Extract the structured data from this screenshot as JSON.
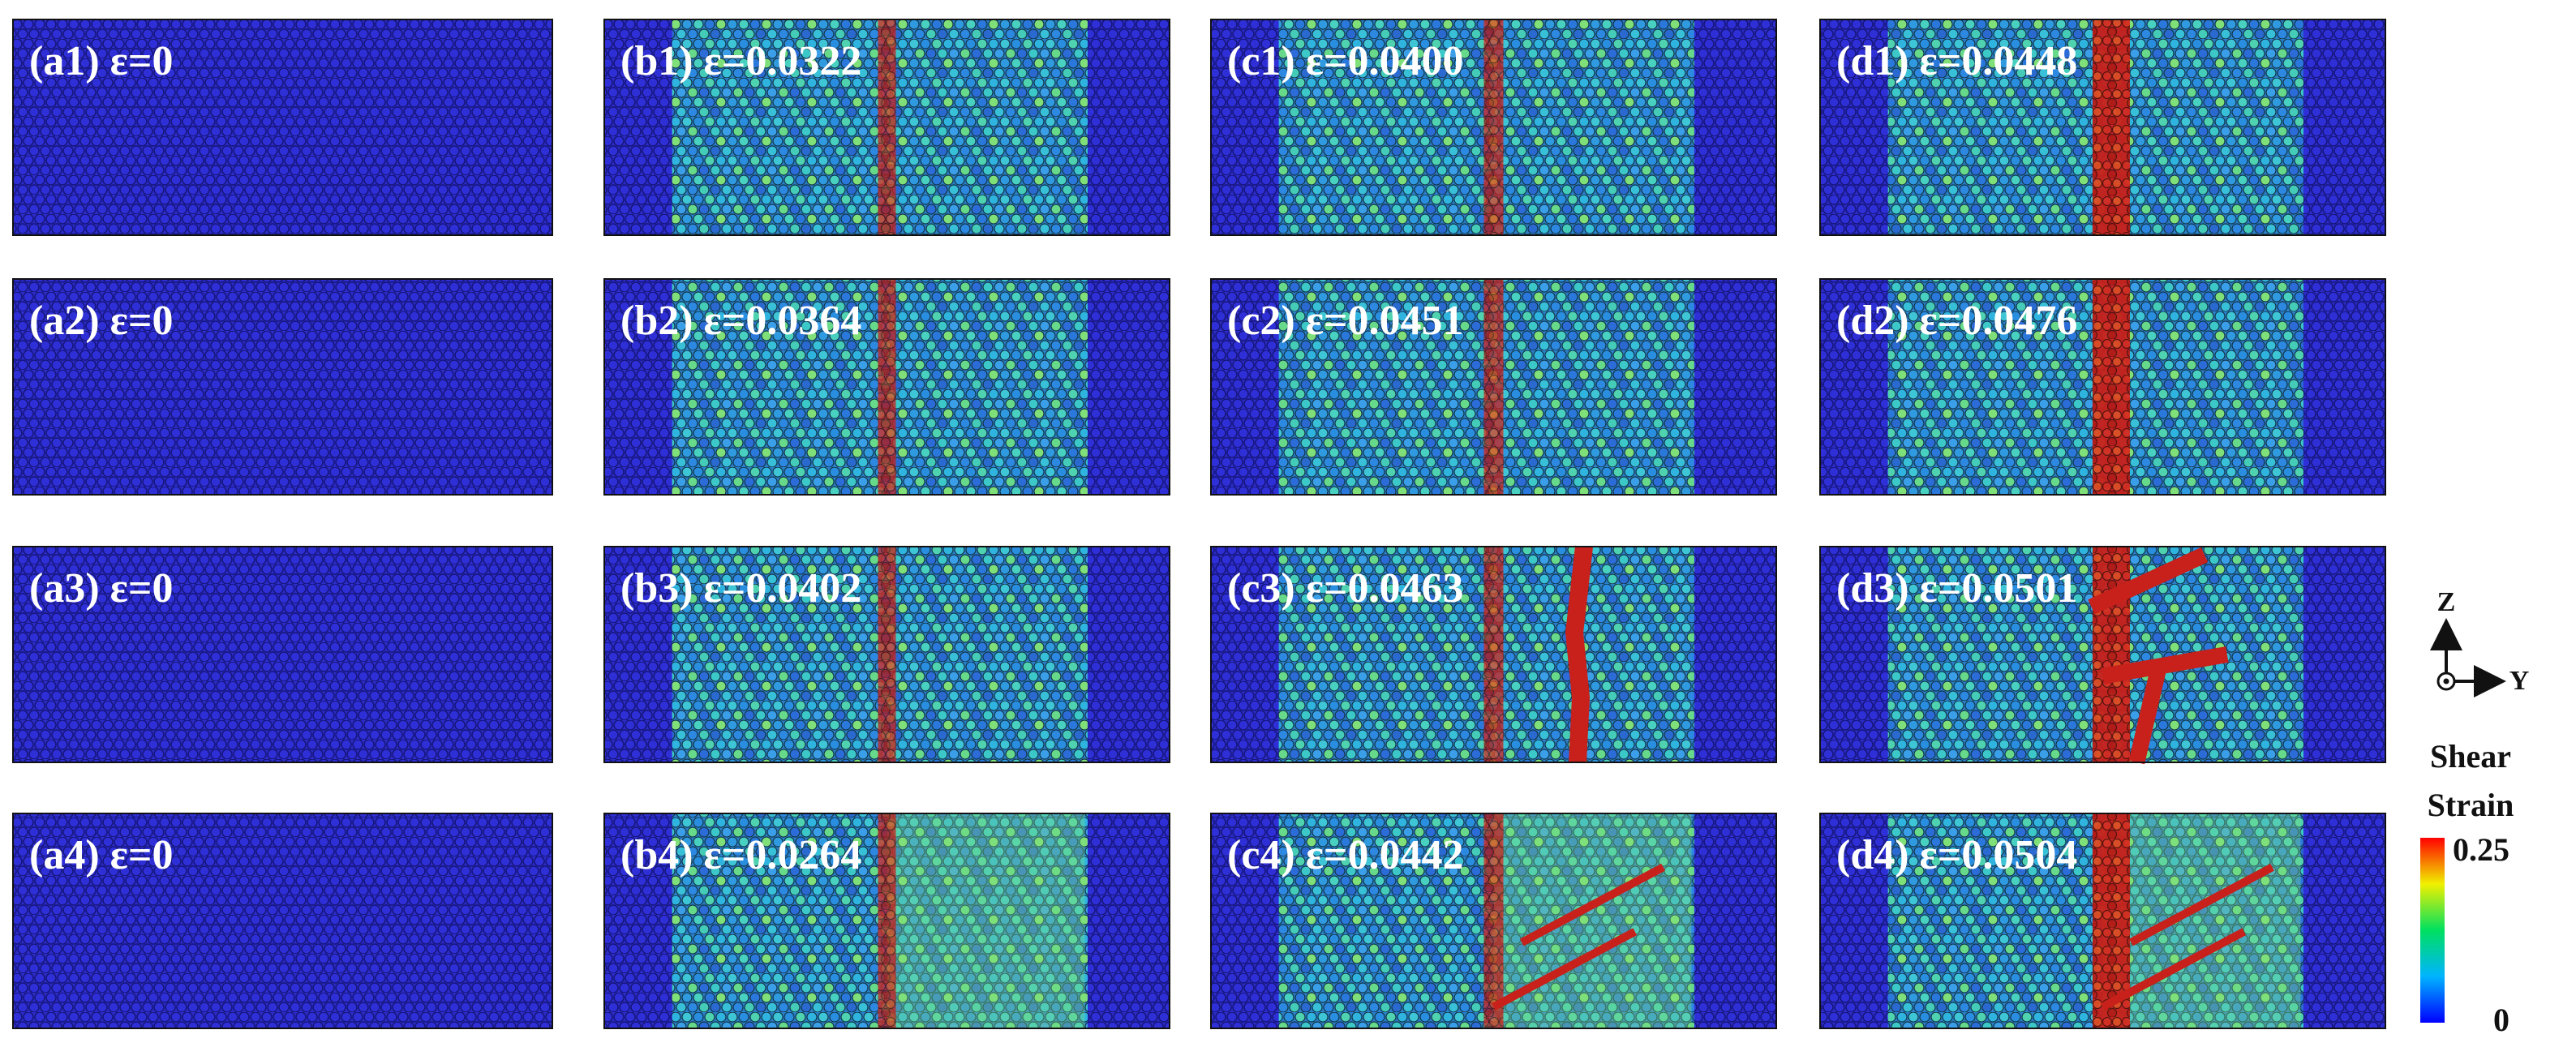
{
  "panels": [
    {
      "label": "(a1) ε=0"
    },
    {
      "label": "(b1) ε=0.0322"
    },
    {
      "label": "(c1) ε=0.0400"
    },
    {
      "label": "(d1) ε=0.0448"
    },
    {
      "label": "(a2) ε=0"
    },
    {
      "label": "(b2) ε=0.0364"
    },
    {
      "label": "(c2) ε=0.0451"
    },
    {
      "label": "(d2) ε=0.0476"
    },
    {
      "label": "(a3) ε=0"
    },
    {
      "label": "(b3) ε=0.0402"
    },
    {
      "label": "(c3) ε=0.0463"
    },
    {
      "label": "(d3) ε=0.0501"
    },
    {
      "label": "(a4) ε=0"
    },
    {
      "label": "(b4) ε=0.0264"
    },
    {
      "label": "(c4) ε=0.0442"
    },
    {
      "label": "(d4) ε=0.0504"
    }
  ],
  "axes": {
    "z": "Z",
    "y": "Y"
  },
  "colorbar": {
    "title": [
      "Shear",
      "Strain"
    ],
    "max": "0.25",
    "min": "0"
  }
}
